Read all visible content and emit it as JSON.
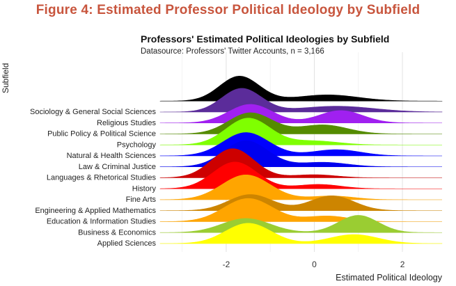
{
  "figure": {
    "title": "Figure 4: Estimated Professor Political Ideology by Subfield"
  },
  "chart_data": {
    "type": "ridgeline",
    "title": "Professors' Estimated Political Ideologies by Subfield",
    "subtitle": "Datasource: Professors' Twitter Accounts, n = 3,166",
    "xlabel": "Estimated Political Ideology",
    "ylabel": "Subfield",
    "xlim": [
      -3.5,
      2.9
    ],
    "xticks": [
      -2,
      0,
      2
    ],
    "xtick_labels": [
      "-2",
      "0",
      "2"
    ],
    "grid": true,
    "series": [
      {
        "name": "Applied Sciences",
        "color": "#ffff00",
        "components": [
          {
            "w": 0.68,
            "mu": -1.5,
            "sd": 0.52
          },
          {
            "w": 0.32,
            "mu": 0.9,
            "sd": 0.55
          }
        ]
      },
      {
        "name": "Business & Economics",
        "color": "#9acd32",
        "components": [
          {
            "w": 0.5,
            "mu": -1.55,
            "sd": 0.55
          },
          {
            "w": 0.5,
            "mu": 1.0,
            "sd": 0.45
          }
        ]
      },
      {
        "name": "Education & Information Studies",
        "color": "#ffa500",
        "components": [
          {
            "w": 0.82,
            "mu": -1.5,
            "sd": 0.55
          },
          {
            "w": 0.18,
            "mu": 0.3,
            "sd": 0.5
          }
        ]
      },
      {
        "name": "Engineering & Applied Mathematics",
        "color": "#cd8500",
        "components": [
          {
            "w": 0.52,
            "mu": -1.45,
            "sd": 0.5
          },
          {
            "w": 0.48,
            "mu": 0.4,
            "sd": 0.5
          }
        ]
      },
      {
        "name": "Fine Arts",
        "color": "#ffa500",
        "components": [
          {
            "w": 0.88,
            "mu": -1.55,
            "sd": 0.55
          },
          {
            "w": 0.12,
            "mu": 0.4,
            "sd": 0.5
          }
        ]
      },
      {
        "name": "History",
        "color": "#ff0000",
        "components": [
          {
            "w": 0.86,
            "mu": -1.8,
            "sd": 0.5
          },
          {
            "w": 0.14,
            "mu": 0.1,
            "sd": 0.5
          }
        ]
      },
      {
        "name": "Languages & Rhetorical Studies",
        "color": "#cd0000",
        "components": [
          {
            "w": 0.9,
            "mu": -1.85,
            "sd": 0.48
          },
          {
            "w": 0.1,
            "mu": 0.0,
            "sd": 0.5
          }
        ]
      },
      {
        "name": "Law & Criminal Justice",
        "color": "#0000ee",
        "components": [
          {
            "w": 0.84,
            "mu": -1.55,
            "sd": 0.5
          },
          {
            "w": 0.16,
            "mu": 0.2,
            "sd": 0.55
          }
        ]
      },
      {
        "name": "Natural & Health Sciences",
        "color": "#0000ff",
        "components": [
          {
            "w": 0.78,
            "mu": -1.55,
            "sd": 0.52
          },
          {
            "w": 0.22,
            "mu": 0.5,
            "sd": 0.55
          }
        ]
      },
      {
        "name": "Psychology",
        "color": "#7fff00",
        "components": [
          {
            "w": 0.86,
            "mu": -1.5,
            "sd": 0.5
          },
          {
            "w": 0.14,
            "mu": 0.0,
            "sd": 0.55
          }
        ]
      },
      {
        "name": "Public Policy & Political Science",
        "color": "#548b00",
        "components": [
          {
            "w": 0.68,
            "mu": -1.45,
            "sd": 0.5
          },
          {
            "w": 0.32,
            "mu": 0.2,
            "sd": 0.55
          }
        ]
      },
      {
        "name": "Religious Studies",
        "color": "#a020f0",
        "components": [
          {
            "w": 0.6,
            "mu": -1.45,
            "sd": 0.5
          },
          {
            "w": 0.4,
            "mu": 0.6,
            "sd": 0.5
          }
        ]
      },
      {
        "name": "Sociology & General Social Sciences",
        "color": "#5b2c9a",
        "components": [
          {
            "w": 0.68,
            "mu": -1.65,
            "sd": 0.45
          },
          {
            "w": 0.32,
            "mu": 0.5,
            "sd": 0.85
          }
        ]
      },
      {
        "name": "(top unlabeled ridge)",
        "color": "#000000",
        "components": [
          {
            "w": 0.72,
            "mu": -1.7,
            "sd": 0.45
          },
          {
            "w": 0.28,
            "mu": 0.3,
            "sd": 0.7
          }
        ]
      }
    ]
  }
}
